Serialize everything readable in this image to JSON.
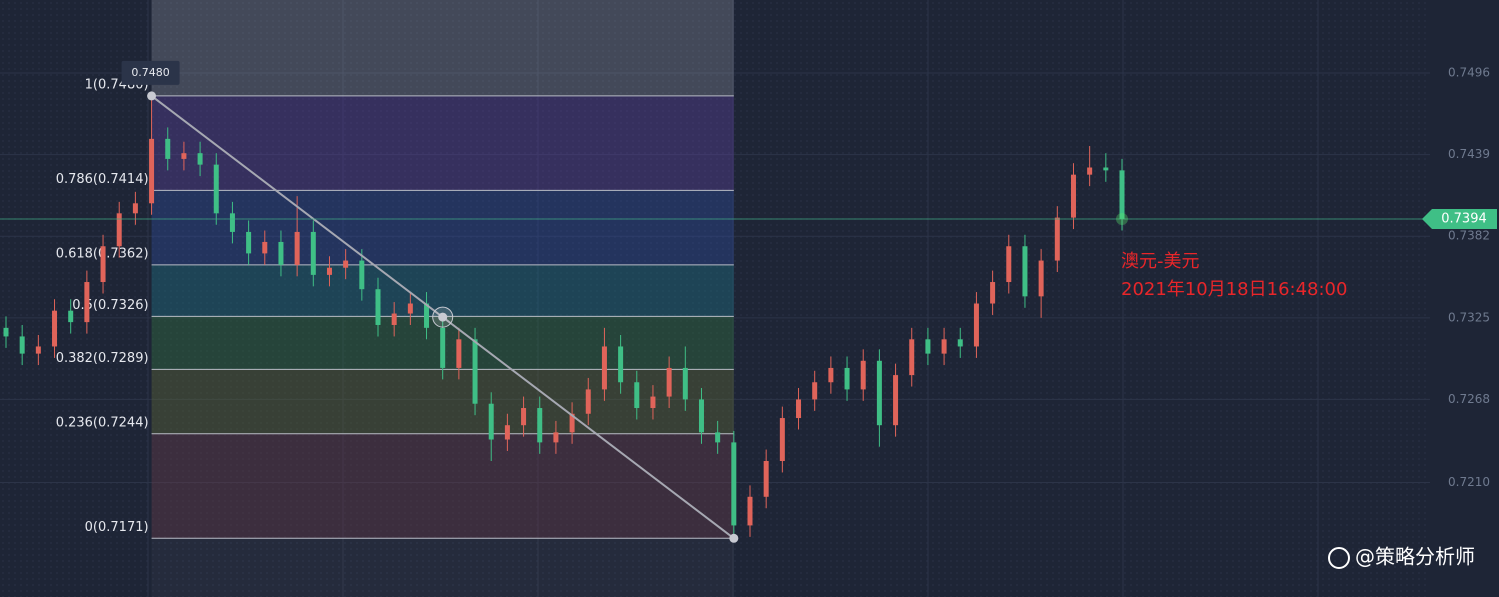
{
  "chart_data": {
    "type": "candlestick",
    "ylim": [
      0.713,
      0.7547
    ],
    "yticks": [
      {
        "value": 0.7496,
        "label": "0.7496"
      },
      {
        "value": 0.7439,
        "label": "0.7439"
      },
      {
        "value": 0.7382,
        "label": "0.7382"
      },
      {
        "value": 0.7325,
        "label": "0.7325"
      },
      {
        "value": 0.7268,
        "label": "0.7268"
      },
      {
        "value": 0.721,
        "label": "0.7210"
      }
    ],
    "grid": true,
    "up_color": "#e0645a",
    "down_color": "#3fbf86",
    "open": [
      0.7318,
      0.7312,
      0.73,
      0.7305,
      0.733,
      0.7322,
      0.735,
      0.7375,
      0.7398,
      0.7405,
      0.745,
      0.7436,
      0.744,
      0.7432,
      0.7398,
      0.7385,
      0.737,
      0.7378,
      0.7362,
      0.7385,
      0.7355,
      0.736,
      0.7365,
      0.7345,
      0.732,
      0.7328,
      0.7335,
      0.7318,
      0.729,
      0.731,
      0.7265,
      0.724,
      0.725,
      0.7262,
      0.7238,
      0.7245,
      0.7258,
      0.7275,
      0.7305,
      0.728,
      0.7262,
      0.727,
      0.729,
      0.7268,
      0.7245,
      0.7238,
      0.718,
      0.72,
      0.7225,
      0.7255,
      0.7268,
      0.728,
      0.729,
      0.7275,
      0.7295,
      0.725,
      0.7285,
      0.731,
      0.73,
      0.731,
      0.7305,
      0.7335,
      0.735,
      0.7375,
      0.734,
      0.7365,
      0.7395,
      0.7425,
      0.743,
      0.7428
    ],
    "high": [
      0.7326,
      0.732,
      0.7313,
      0.7338,
      0.7338,
      0.7358,
      0.7383,
      0.7406,
      0.7413,
      0.748,
      0.7458,
      0.7448,
      0.7448,
      0.744,
      0.7406,
      0.7393,
      0.7386,
      0.7386,
      0.741,
      0.7393,
      0.7368,
      0.7373,
      0.7373,
      0.7353,
      0.7336,
      0.7343,
      0.7343,
      0.7326,
      0.7318,
      0.7318,
      0.7273,
      0.7258,
      0.727,
      0.727,
      0.7253,
      0.7266,
      0.7283,
      0.7318,
      0.7313,
      0.7288,
      0.7278,
      0.7298,
      0.7305,
      0.7276,
      0.7253,
      0.7246,
      0.7208,
      0.7233,
      0.7263,
      0.7276,
      0.7288,
      0.7298,
      0.7298,
      0.7303,
      0.7303,
      0.7293,
      0.7318,
      0.7318,
      0.7318,
      0.7318,
      0.7343,
      0.7358,
      0.7383,
      0.7383,
      0.7373,
      0.7403,
      0.7433,
      0.7445,
      0.744,
      0.7436
    ],
    "low": [
      0.7304,
      0.7292,
      0.7292,
      0.7297,
      0.7314,
      0.7314,
      0.7342,
      0.7367,
      0.739,
      0.7397,
      0.7428,
      0.7428,
      0.7424,
      0.739,
      0.7377,
      0.7362,
      0.7362,
      0.7354,
      0.7354,
      0.7347,
      0.7347,
      0.7352,
      0.7337,
      0.7312,
      0.7312,
      0.732,
      0.731,
      0.7282,
      0.7282,
      0.7257,
      0.7225,
      0.7232,
      0.7242,
      0.723,
      0.723,
      0.7237,
      0.725,
      0.7267,
      0.7272,
      0.7254,
      0.7254,
      0.7262,
      0.726,
      0.7237,
      0.723,
      0.7171,
      0.7172,
      0.7192,
      0.7217,
      0.7247,
      0.726,
      0.7272,
      0.7267,
      0.7267,
      0.7235,
      0.7242,
      0.7277,
      0.7292,
      0.7292,
      0.7297,
      0.7297,
      0.7327,
      0.7342,
      0.7332,
      0.7325,
      0.7357,
      0.7387,
      0.7417,
      0.742,
      0.7386
    ],
    "close": [
      0.7312,
      0.73,
      0.7305,
      0.733,
      0.7322,
      0.735,
      0.7375,
      0.7398,
      0.7405,
      0.745,
      0.7436,
      0.744,
      0.7432,
      0.7398,
      0.7385,
      0.737,
      0.7378,
      0.7362,
      0.7385,
      0.7355,
      0.736,
      0.7365,
      0.7345,
      0.732,
      0.7328,
      0.7335,
      0.7318,
      0.729,
      0.731,
      0.7265,
      0.724,
      0.725,
      0.7262,
      0.7238,
      0.7245,
      0.7258,
      0.7275,
      0.7305,
      0.728,
      0.7262,
      0.727,
      0.729,
      0.7268,
      0.7245,
      0.7238,
      0.718,
      0.72,
      0.7225,
      0.7255,
      0.7268,
      0.728,
      0.729,
      0.7275,
      0.7295,
      0.725,
      0.7285,
      0.731,
      0.73,
      0.731,
      0.7305,
      0.7335,
      0.735,
      0.7375,
      0.734,
      0.7365,
      0.7395,
      0.7425,
      0.743,
      0.7428,
      0.7394
    ],
    "fib": {
      "levels": [
        {
          "price": 0.748,
          "label": "1(0.7480)"
        },
        {
          "price": 0.7414,
          "label": "0.786(0.7414)"
        },
        {
          "price": 0.7362,
          "label": "0.618(0.7362)"
        },
        {
          "price": 0.7326,
          "label": "0.5(0.7326)"
        },
        {
          "price": 0.7289,
          "label": "0.382(0.7289)"
        },
        {
          "price": 0.7244,
          "label": "0.236(0.7244)"
        },
        {
          "price": 0.7171,
          "label": "0(0.7171)"
        }
      ],
      "band_colors": [
        "rgba(100,70,170,0.35)",
        "rgba(50,80,170,0.35)",
        "rgba(30,115,135,0.4)",
        "rgba(50,115,65,0.4)",
        "rgba(95,105,55,0.4)",
        "rgba(105,60,75,0.4)"
      ],
      "peak_label": {
        "value": 0.748,
        "label": "0.7480"
      }
    },
    "current_price": 0.7394,
    "annotation": {
      "name": "澳元-美元",
      "time": "2021年10月18日16:48:00"
    },
    "watermark": "@策略分析师"
  }
}
